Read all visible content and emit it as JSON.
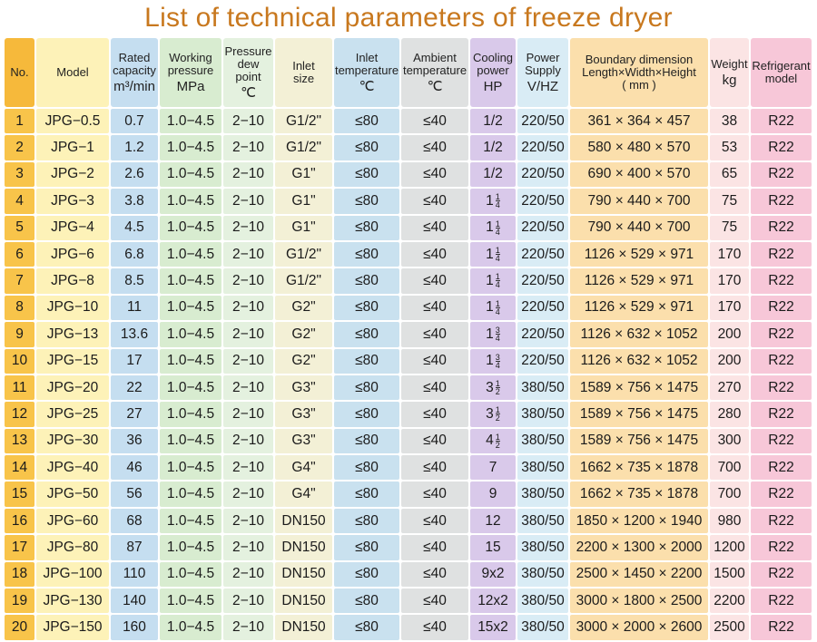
{
  "title": "List of technical parameters of freeze dryer",
  "headers": [
    {
      "lines": [
        "No."
      ],
      "unit": ""
    },
    {
      "lines": [
        "Model"
      ],
      "unit": ""
    },
    {
      "lines": [
        "Rated",
        "capacity"
      ],
      "unit": "m³/min"
    },
    {
      "lines": [
        "Working",
        "pressure"
      ],
      "unit": "MPa"
    },
    {
      "lines": [
        "Pressure",
        "dew",
        "point"
      ],
      "unit": "℃"
    },
    {
      "lines": [
        "Inlet",
        "size"
      ],
      "unit": ""
    },
    {
      "lines": [
        "Inlet",
        "temperature"
      ],
      "unit": "℃"
    },
    {
      "lines": [
        "Ambient",
        "temperature"
      ],
      "unit": "℃"
    },
    {
      "lines": [
        "Cooling",
        "power"
      ],
      "unit": "HP"
    },
    {
      "lines": [
        "Power",
        "Supply"
      ],
      "unit": "V/HZ"
    },
    {
      "lines": [
        "Boundary dimension",
        "Length×Width×Height",
        "( mm )"
      ],
      "unit": ""
    },
    {
      "lines": [
        "Weight"
      ],
      "unit": "kg"
    },
    {
      "lines": [
        "Refrigerant",
        "model"
      ],
      "unit": ""
    }
  ],
  "rows": [
    [
      "1",
      "JPG−0.5",
      "0.7",
      "1.0−4.5",
      "2−10",
      "G1/2\"",
      "≤80",
      "≤40",
      "1/2",
      "220/50",
      "361 × 364 × 457",
      "38",
      "R22"
    ],
    [
      "2",
      "JPG−1",
      "1.2",
      "1.0−4.5",
      "2−10",
      "G1/2\"",
      "≤80",
      "≤40",
      "1/2",
      "220/50",
      "580 × 480 × 570",
      "53",
      "R22"
    ],
    [
      "3",
      "JPG−2",
      "2.6",
      "1.0−4.5",
      "2−10",
      "G1\"",
      "≤80",
      "≤40",
      "1/2",
      "220/50",
      "690 × 400 × 570",
      "65",
      "R22"
    ],
    [
      "4",
      "JPG−3",
      "3.8",
      "1.0−4.5",
      "2−10",
      "G1\"",
      "≤80",
      "≤40",
      "1 1/4",
      "220/50",
      "790 × 440 × 700",
      "75",
      "R22"
    ],
    [
      "5",
      "JPG−4",
      "4.5",
      "1.0−4.5",
      "2−10",
      "G1\"",
      "≤80",
      "≤40",
      "1 1/4",
      "220/50",
      "790 × 440 × 700",
      "75",
      "R22"
    ],
    [
      "6",
      "JPG−6",
      "6.8",
      "1.0−4.5",
      "2−10",
      "G1/2\"",
      "≤80",
      "≤40",
      "1 1/4",
      "220/50",
      "1126 × 529 × 971",
      "170",
      "R22"
    ],
    [
      "7",
      "JPG−8",
      "8.5",
      "1.0−4.5",
      "2−10",
      "G1/2\"",
      "≤80",
      "≤40",
      "1 1/4",
      "220/50",
      "1126 × 529 × 971",
      "170",
      "R22"
    ],
    [
      "8",
      "JPG−10",
      "11",
      "1.0−4.5",
      "2−10",
      "G2\"",
      "≤80",
      "≤40",
      "1 1/4",
      "220/50",
      "1126 × 529 × 971",
      "170",
      "R22"
    ],
    [
      "9",
      "JPG−13",
      "13.6",
      "1.0−4.5",
      "2−10",
      "G2\"",
      "≤80",
      "≤40",
      "1 3/4",
      "220/50",
      "1126 × 632 × 1052",
      "200",
      "R22"
    ],
    [
      "10",
      "JPG−15",
      "17",
      "1.0−4.5",
      "2−10",
      "G2\"",
      "≤80",
      "≤40",
      "1 3/4",
      "220/50",
      "1126 × 632 × 1052",
      "200",
      "R22"
    ],
    [
      "11",
      "JPG−20",
      "22",
      "1.0−4.5",
      "2−10",
      "G3\"",
      "≤80",
      "≤40",
      "3 1/2",
      "380/50",
      "1589 × 756 × 1475",
      "270",
      "R22"
    ],
    [
      "12",
      "JPG−25",
      "27",
      "1.0−4.5",
      "2−10",
      "G3\"",
      "≤80",
      "≤40",
      "3 1/2",
      "380/50",
      "1589 × 756 × 1475",
      "280",
      "R22"
    ],
    [
      "13",
      "JPG−30",
      "36",
      "1.0−4.5",
      "2−10",
      "G3\"",
      "≤80",
      "≤40",
      "4 1/2",
      "380/50",
      "1589 × 756 × 1475",
      "300",
      "R22"
    ],
    [
      "14",
      "JPG−40",
      "46",
      "1.0−4.5",
      "2−10",
      "G4\"",
      "≤80",
      "≤40",
      "7",
      "380/50",
      "1662 × 735 × 1878",
      "700",
      "R22"
    ],
    [
      "15",
      "JPG−50",
      "56",
      "1.0−4.5",
      "2−10",
      "G4\"",
      "≤80",
      "≤40",
      "9",
      "380/50",
      "1662 × 735 × 1878",
      "700",
      "R22"
    ],
    [
      "16",
      "JPG−60",
      "68",
      "1.0−4.5",
      "2−10",
      "DN150",
      "≤80",
      "≤40",
      "12",
      "380/50",
      "1850 × 1200 × 1940",
      "980",
      "R22"
    ],
    [
      "17",
      "JPG−80",
      "87",
      "1.0−4.5",
      "2−10",
      "DN150",
      "≤80",
      "≤40",
      "15",
      "380/50",
      "2200 × 1300 × 2000",
      "1200",
      "R22"
    ],
    [
      "18",
      "JPG−100",
      "110",
      "1.0−4.5",
      "2−10",
      "DN150",
      "≤80",
      "≤40",
      "9x2",
      "380/50",
      "2500 × 1450 × 2200",
      "1500",
      "R22"
    ],
    [
      "19",
      "JPG−130",
      "140",
      "1.0−4.5",
      "2−10",
      "DN150",
      "≤80",
      "≤40",
      "12x2",
      "380/50",
      "3000 × 1800 × 2500",
      "2200",
      "R22"
    ],
    [
      "20",
      "JPG−150",
      "160",
      "1.0−4.5",
      "2−10",
      "DN150",
      "≤80",
      "≤40",
      "15x2",
      "380/50",
      "3000 × 2000 × 2600",
      "2500",
      "R22"
    ]
  ]
}
